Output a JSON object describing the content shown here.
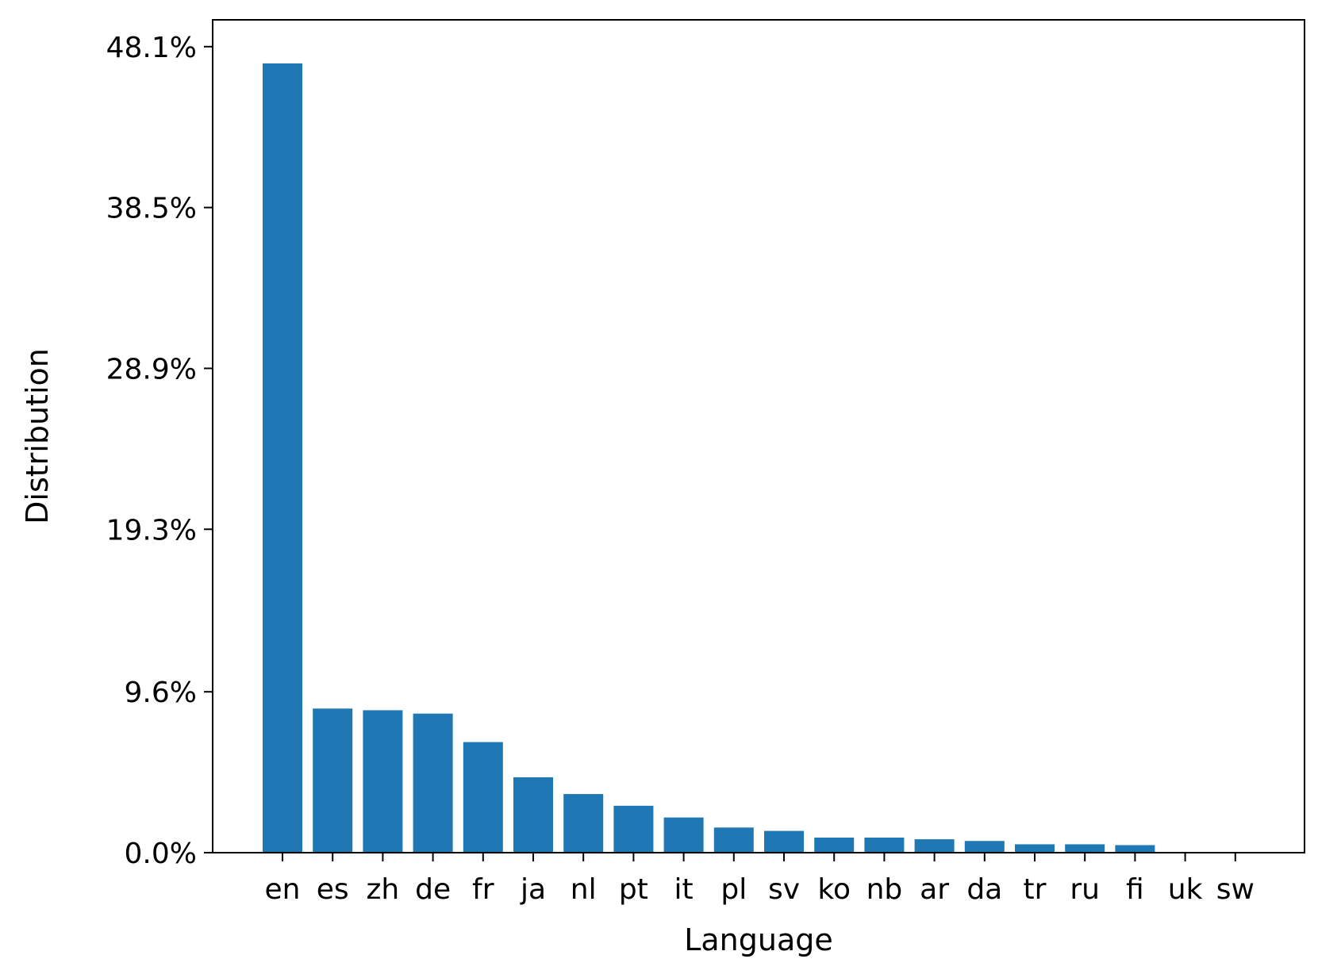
{
  "chart_data": {
    "type": "bar",
    "xlabel": "Language",
    "ylabel": "Distribution",
    "categories": [
      "en",
      "es",
      "zh",
      "de",
      "fr",
      "ja",
      "nl",
      "pt",
      "it",
      "pl",
      "sv",
      "ko",
      "nb",
      "ar",
      "da",
      "tr",
      "ru",
      "fi",
      "uk",
      "sw"
    ],
    "values": [
      47.1,
      8.6,
      8.5,
      8.3,
      6.6,
      4.5,
      3.5,
      2.8,
      2.1,
      1.5,
      1.3,
      0.9,
      0.9,
      0.8,
      0.7,
      0.5,
      0.5,
      0.45,
      0.0,
      0.0
    ],
    "yticks": [
      0.0,
      9.6,
      19.3,
      28.9,
      38.5,
      48.1
    ],
    "ytick_labels": [
      "0.0%",
      "9.6%",
      "19.3%",
      "28.9%",
      "38.5%",
      "48.1%"
    ],
    "ylim": [
      0,
      49.7
    ],
    "bar_color": "#1f77b4",
    "grid": false,
    "legend": "none"
  }
}
